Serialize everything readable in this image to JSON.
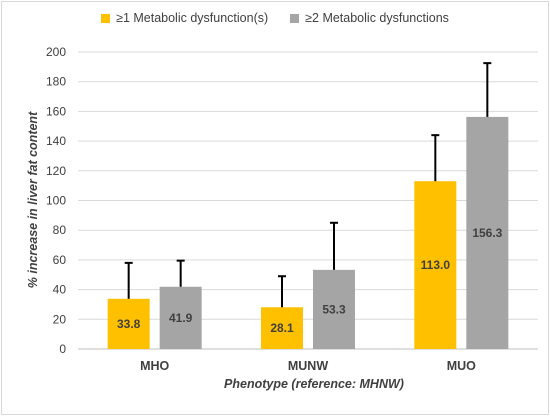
{
  "chart_data": {
    "type": "bar",
    "categories": [
      "MHO",
      "MUNW",
      "MUO"
    ],
    "series": [
      {
        "name": "≥1 Metabolic dysfunction(s)",
        "color": "#ffc000",
        "values": [
          33.8,
          28.1,
          113.0
        ],
        "value_labels": [
          "33.8",
          "28.1",
          "113.0"
        ],
        "error_upper": [
          58,
          49,
          144
        ]
      },
      {
        "name": "≥2 Metabolic dysfunctions",
        "color": "#a5a5a5",
        "values": [
          41.9,
          53.3,
          156.3
        ],
        "value_labels": [
          "41.9",
          "53.3",
          "156.3"
        ],
        "error_upper": [
          59.5,
          85,
          192.5
        ]
      }
    ],
    "xlabel": "Phenotype (reference: MHNW)",
    "ylabel": "% increase in liver fat content",
    "ylim": [
      0,
      200
    ],
    "yticks": [
      "0",
      "20",
      "40",
      "60",
      "80",
      "100",
      "120",
      "140",
      "160",
      "180",
      "200"
    ],
    "grid": true,
    "legend_position": "top"
  }
}
